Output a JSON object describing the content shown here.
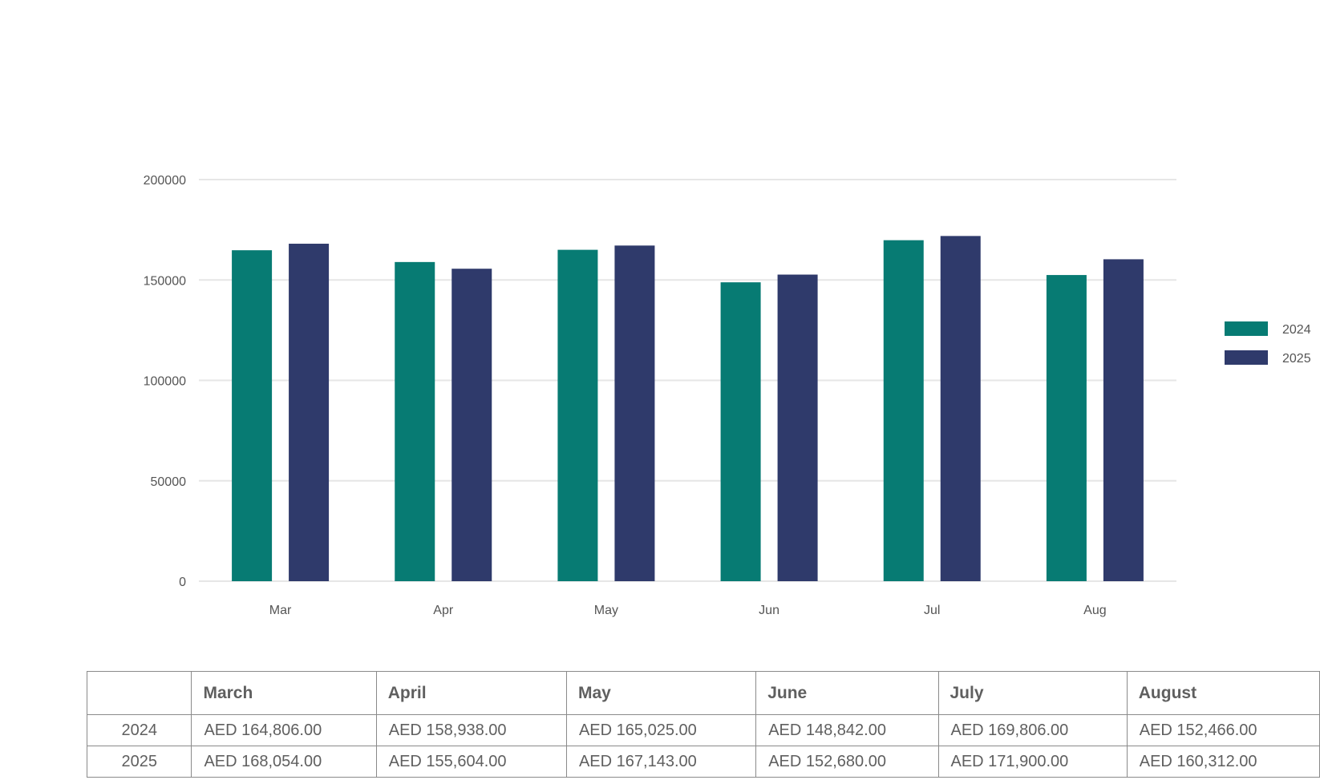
{
  "chart_data": {
    "type": "bar",
    "categories": [
      "Mar",
      "Apr",
      "May",
      "Jun",
      "Jul",
      "Aug"
    ],
    "series": [
      {
        "name": "2024",
        "color": "#077b73",
        "values": [
          164806,
          158938,
          165025,
          148842,
          169806,
          152466
        ]
      },
      {
        "name": "2025",
        "color": "#2f3a6b",
        "values": [
          168054,
          155604,
          167143,
          152680,
          171900,
          160312
        ]
      }
    ],
    "y_ticks": [
      "0",
      "50000",
      "100000",
      "150000",
      "200000"
    ],
    "ylim": [
      0,
      200000
    ],
    "grid": true,
    "legend_position": "right"
  },
  "table": {
    "columns": [
      "March",
      "April",
      "May",
      "June",
      "July",
      "August"
    ],
    "rows": [
      {
        "label": "2024",
        "cells": [
          "AED 164,806.00",
          "AED 158,938.00",
          "AED 165,025.00",
          "AED 148,842.00",
          "AED 169,806.00",
          "AED 152,466.00"
        ]
      },
      {
        "label": "2025",
        "cells": [
          "AED 168,054.00",
          "AED 155,604.00",
          "AED 167,143.00",
          "AED 152,680.00",
          "AED 171,900.00",
          "AED 160,312.00"
        ]
      }
    ]
  }
}
